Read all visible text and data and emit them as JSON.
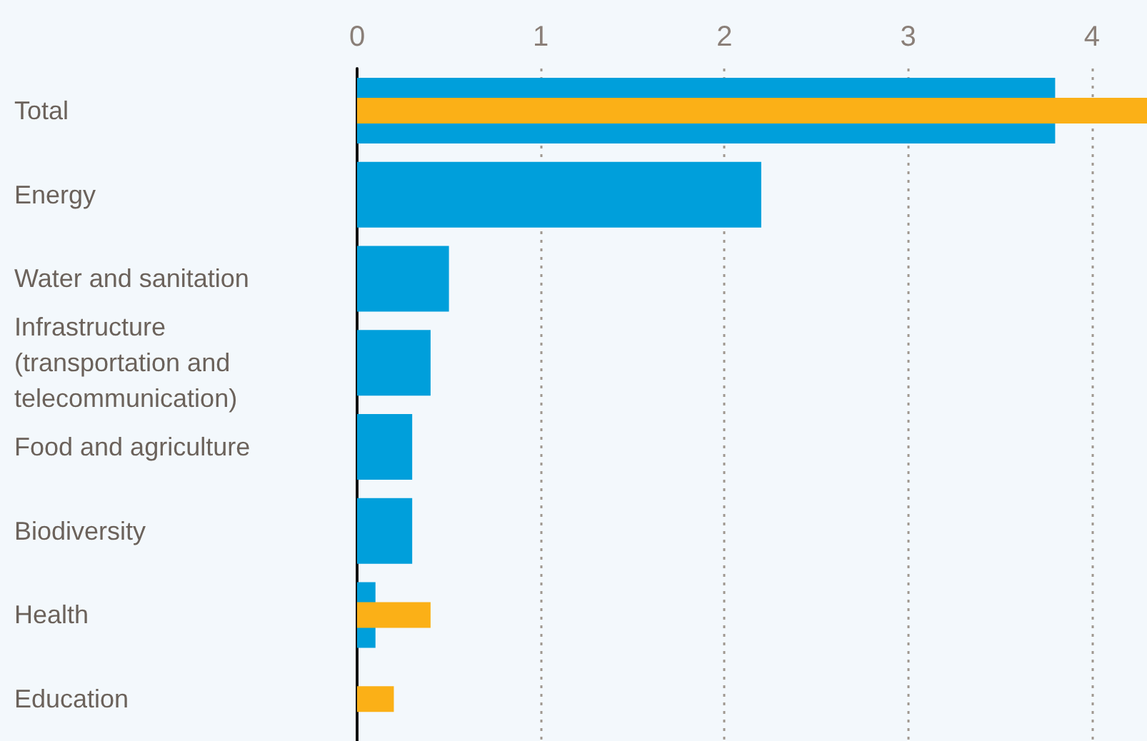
{
  "chart_data": {
    "type": "bar",
    "orientation": "horizontal",
    "categories": [
      "Total",
      "Energy",
      "Water and sanitation",
      "Infrastructure (transportation and telecommunication)",
      "Food and agriculture",
      "Biodiversity",
      "Health",
      "Education"
    ],
    "series": [
      {
        "color": "#009fdb",
        "values": [
          3.8,
          2.2,
          0.5,
          0.4,
          0.3,
          0.3,
          0.1,
          null
        ]
      },
      {
        "color": "#fbb017",
        "values": [
          4.3,
          null,
          null,
          null,
          null,
          null,
          0.4,
          0.2
        ]
      }
    ],
    "xlim": [
      0,
      4.3
    ],
    "xticks": [
      0,
      1,
      2,
      3,
      4
    ],
    "grid": "x"
  }
}
